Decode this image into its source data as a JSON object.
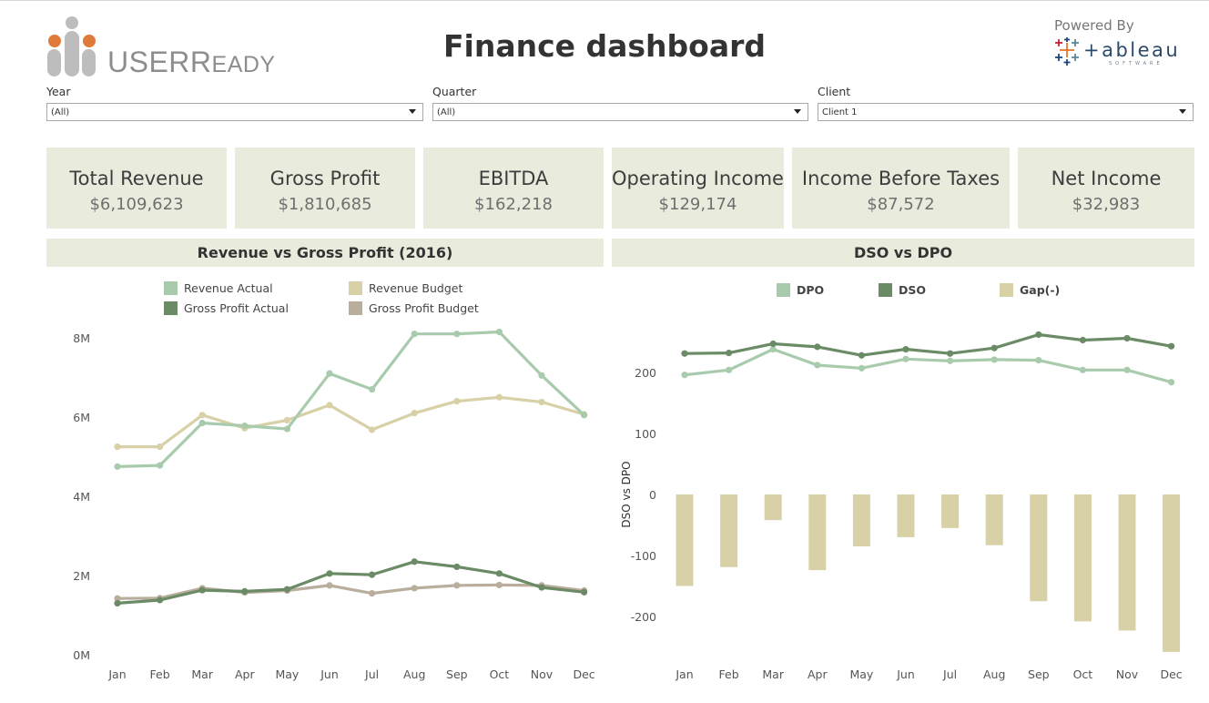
{
  "header": {
    "title": "Finance dashboard",
    "brand": {
      "part1": "USER",
      "part2": "EADY",
      "initial": "R"
    },
    "powered_by": "Powered By",
    "tableau_word": "+ableau",
    "tableau_small": "SOFTWARE"
  },
  "colors": {
    "panel": "#e9ecdd",
    "revenue_actual": "#a9cbad",
    "revenue_budget": "#d8d0a6",
    "gp_actual": "#6b8a66",
    "gp_budget": "#b9ae9c",
    "dpo": "#a9cbad",
    "dso": "#6b8a66",
    "gap": "#d8d0a6",
    "logo_orange": "#e07a3a",
    "logo_gray": "#bdbdbd"
  },
  "filters": [
    {
      "label": "Year",
      "value": "(All)"
    },
    {
      "label": "Quarter",
      "value": "(All)"
    },
    {
      "label": "Client",
      "value": "Client 1"
    }
  ],
  "kpis": [
    {
      "label": "Total Revenue",
      "value": "$6,109,623"
    },
    {
      "label": "Gross Profit",
      "value": "$1,810,685"
    },
    {
      "label": "EBITDA",
      "value": "$162,218"
    },
    {
      "label": "Operating Income",
      "value": "$129,174"
    },
    {
      "label": "Income Before Taxes",
      "value": "$87,572"
    },
    {
      "label": "Net Income",
      "value": "$32,983"
    }
  ],
  "chart_data": [
    {
      "type": "line",
      "title": "Revenue vs Gross Profit (2016)",
      "categories": [
        "Jan",
        "Feb",
        "Mar",
        "Apr",
        "May",
        "Jun",
        "Jul",
        "Aug",
        "Sep",
        "Oct",
        "Nov",
        "Dec"
      ],
      "y_ticks": [
        0,
        2000000,
        4000000,
        6000000,
        8000000
      ],
      "y_tick_labels": [
        "0M",
        "2M",
        "4M",
        "6M",
        "8M"
      ],
      "ylim": [
        0,
        8500000
      ],
      "series": [
        {
          "name": "Revenue Actual",
          "color_key": "revenue_actual",
          "values": [
            4.75,
            4.78,
            5.85,
            5.78,
            5.7,
            7.1,
            6.7,
            8.1,
            8.1,
            8.15,
            7.05,
            6.05
          ]
        },
        {
          "name": "Revenue Budget",
          "color_key": "revenue_budget",
          "values": [
            5.25,
            5.25,
            6.05,
            5.72,
            5.92,
            6.3,
            5.68,
            6.1,
            6.4,
            6.5,
            6.38,
            6.07
          ]
        },
        {
          "name": "Gross Profit Actual",
          "color_key": "gp_actual",
          "values": [
            1.3,
            1.38,
            1.63,
            1.6,
            1.65,
            2.05,
            2.02,
            2.35,
            2.22,
            2.05,
            1.7,
            1.58
          ]
        },
        {
          "name": "Gross Profit Budget",
          "color_key": "gp_budget",
          "values": [
            1.42,
            1.43,
            1.68,
            1.57,
            1.62,
            1.75,
            1.55,
            1.68,
            1.75,
            1.76,
            1.75,
            1.62
          ]
        }
      ],
      "value_scale": 1000000,
      "legend": "top"
    },
    {
      "type": "bar+line",
      "title": "DSO vs DPO",
      "ylabel": "DSO vs DPO",
      "categories": [
        "Jan",
        "Feb",
        "Mar",
        "Apr",
        "May",
        "Jun",
        "Jul",
        "Aug",
        "Sep",
        "Oct",
        "Nov",
        "Dec"
      ],
      "y_ticks": [
        -200,
        -100,
        0,
        100,
        200
      ],
      "y_tick_labels": [
        "-200",
        "-100",
        "0",
        "100",
        "200"
      ],
      "ylim": [
        -275,
        275
      ],
      "series": [
        {
          "name": "DPO",
          "kind": "line",
          "color_key": "dpo",
          "values": [
            196,
            204,
            238,
            212,
            207,
            222,
            219,
            221,
            220,
            204,
            204,
            184
          ]
        },
        {
          "name": "DSO",
          "kind": "line",
          "color_key": "dso",
          "values": [
            231,
            232,
            247,
            242,
            228,
            238,
            231,
            240,
            262,
            253,
            256,
            243
          ]
        },
        {
          "name": "Gap(-)",
          "kind": "bar",
          "color_key": "gap",
          "values": [
            -150,
            -119,
            -42,
            -124,
            -85,
            -70,
            -55,
            -83,
            -175,
            -208,
            -223,
            -258
          ]
        }
      ],
      "legend": "top"
    }
  ]
}
